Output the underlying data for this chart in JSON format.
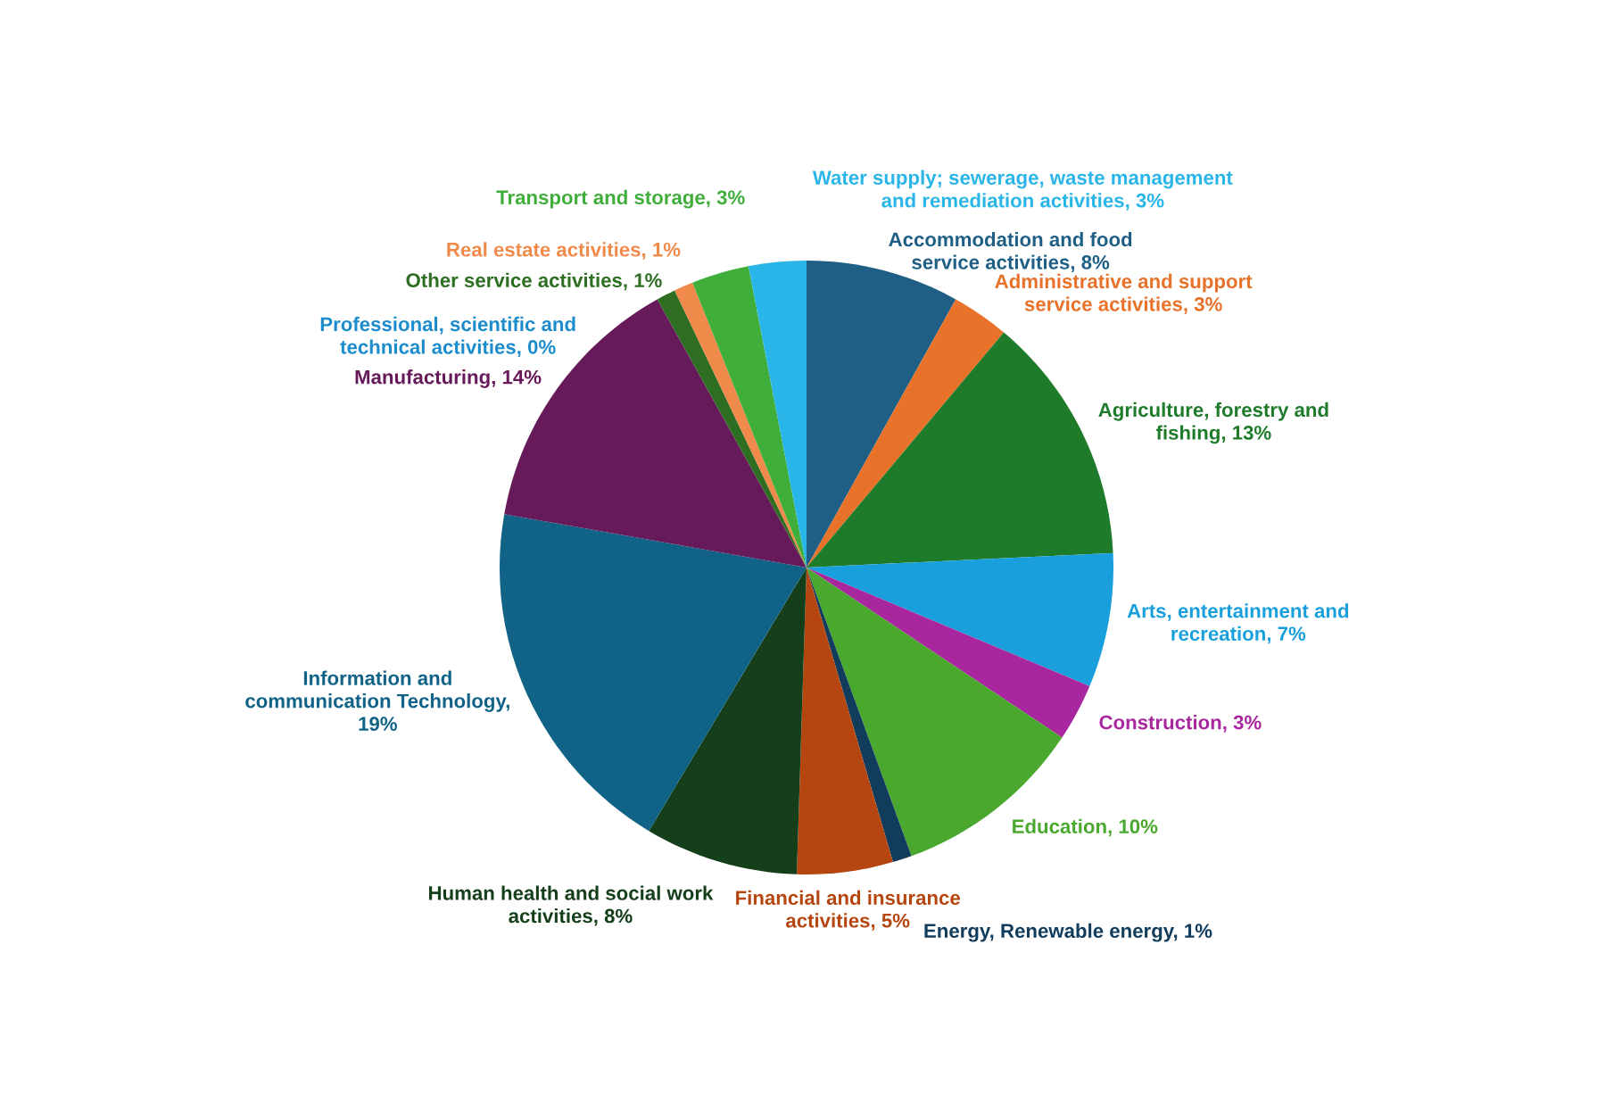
{
  "chart_data": {
    "type": "pie",
    "categories": [
      "Accommodation and food service activities, 8%",
      "Administrative and support service activities, 3%",
      "Agriculture, forestry and fishing, 13%",
      "Arts, entertainment and recreation, 7%",
      "Construction, 3%",
      "Education, 10%",
      "Energy, Renewable energy, 1%",
      "Financial and insurance activities, 5%",
      "Human health and social work activities, 8%",
      "Information and communication Technology, 19%",
      "Manufacturing, 14%",
      "Other service activities, 1%",
      "Professional, scientific and technical activities, 0%",
      "Real estate activities, 1%",
      "Transport and storage, 3%",
      "Water supply; sewerage, waste management and remediation activities, 3%"
    ],
    "values": [
      8,
      3,
      13,
      7,
      3,
      10,
      1,
      5,
      8,
      19,
      14,
      1,
      0,
      1,
      3,
      3
    ],
    "colors": [
      "#1f5f86",
      "#e8722a",
      "#1e7b2a",
      "#19a0dc",
      "#a8279e",
      "#4aa82e",
      "#123c5c",
      "#b5460f",
      "#143f1a",
      "#106386",
      "#661a5a",
      "#2d6e22",
      "#1c8ccc",
      "#f08a4b",
      "#3fae3a",
      "#29b5e8"
    ]
  }
}
